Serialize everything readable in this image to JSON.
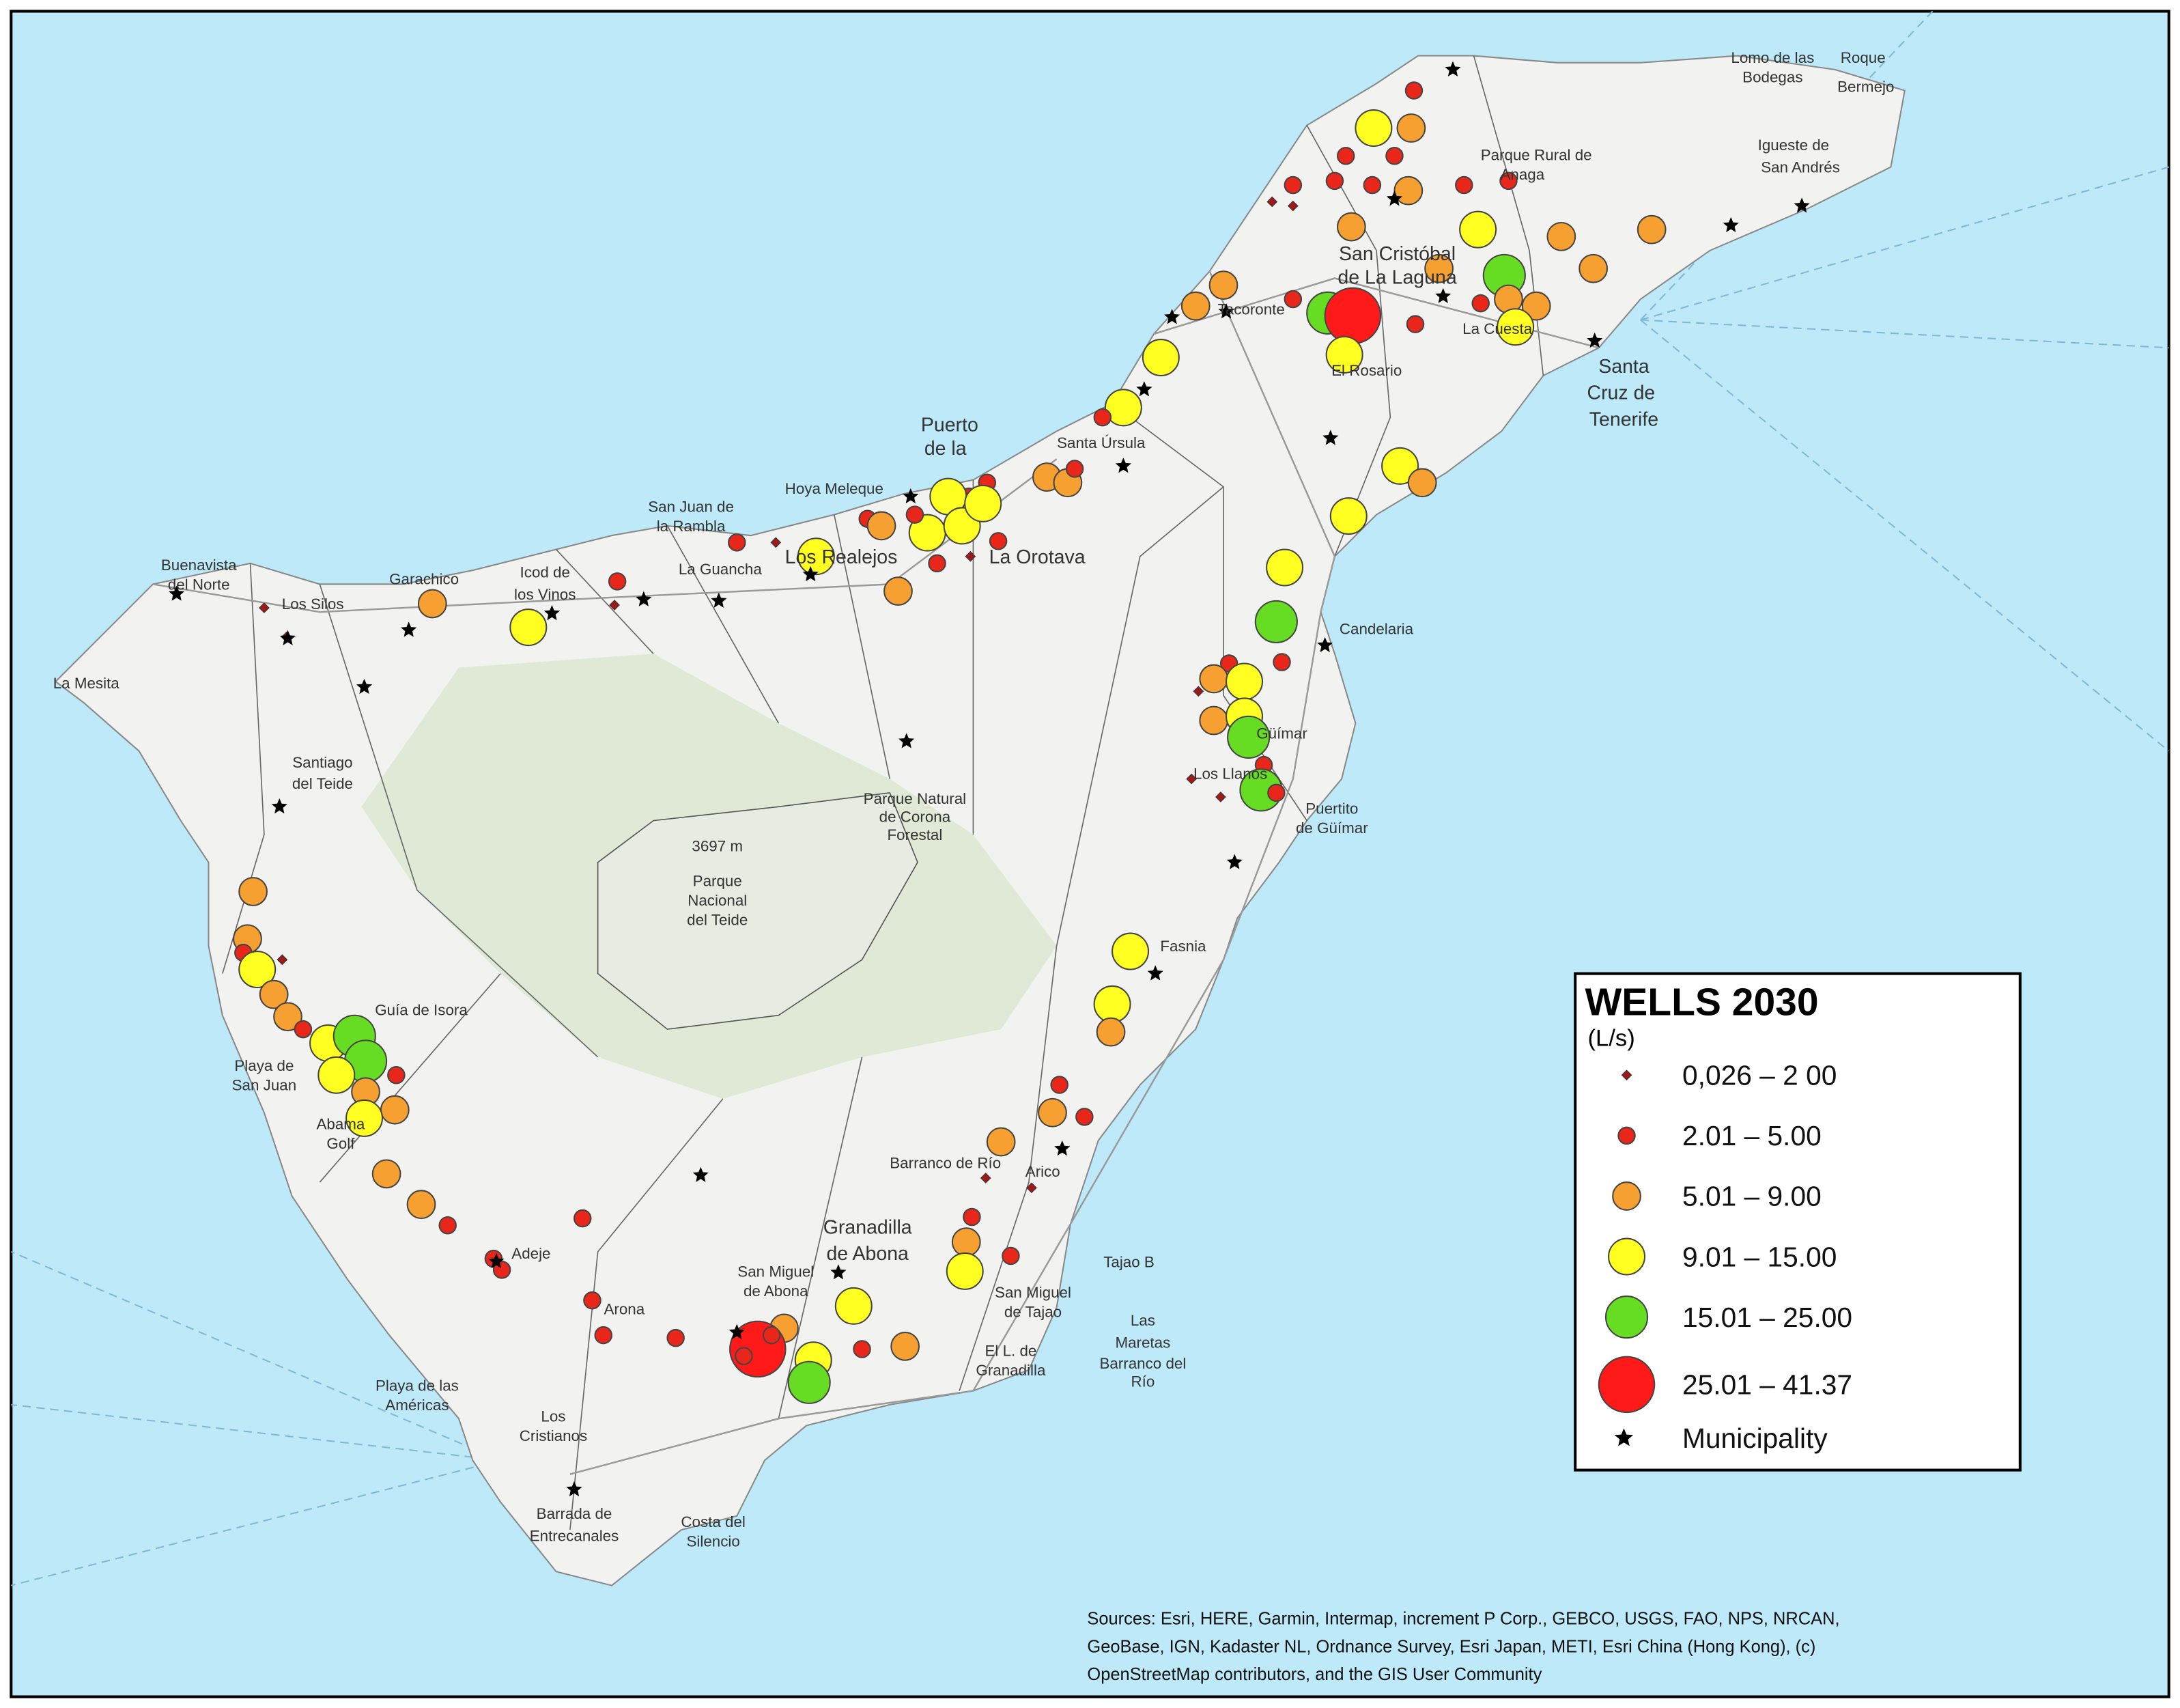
{
  "map": {
    "legend": {
      "title": "WELLS 2030",
      "unit": "(L/s)",
      "items": [
        "0,026 – 2 00",
        "2.01 – 5.00",
        "5.01 – 9.00",
        "9.01 – 15.00",
        "15.01 – 25.00",
        "25.01 – 41.37",
        "Municipality"
      ]
    },
    "places": [
      "Lomo de las",
      "Bodegas",
      "Roque",
      "Bermejo",
      "Igueste de",
      "San Andrés",
      "Parque Rural de",
      "Anaga",
      "San Cristóbal",
      "de La Laguna",
      "Tacoronte",
      "La Cuesta",
      "El Rosario",
      "Santa",
      "Cruz de",
      "Tenerife",
      "Santa Úrsula",
      "Puerto",
      "de la",
      "Hoya Meleque",
      "Los Realejos",
      "La Orotava",
      "San Juan de",
      "la Rambla",
      "La Guancha",
      "Icod de",
      "los Vinos",
      "Garachico",
      "Buenavista",
      "del Norte",
      "Los Silos",
      "La Mesita",
      "Santiago",
      "del Teide",
      "Candelaria",
      "Güímar",
      "Los Llanos",
      "Puertito",
      "de Güímar",
      "3697 m",
      "Parque",
      "Nacional",
      "del Teide",
      "Parque Natural",
      "de Corona",
      "Forestal",
      "Fasnia",
      "Guía de Isora",
      "Playa de",
      "San Juan",
      "Abama",
      "Golf",
      "Arico",
      "Barranco de Río",
      "Granadilla",
      "de Abona",
      "Tajao B",
      "San Miguel",
      "de Abona",
      "San Miguel",
      "de Tajao",
      "Adeje",
      "Arona",
      "Playa de las",
      "Américas",
      "Los",
      "Cristianos",
      "Las",
      "Maretas",
      "Barranco del",
      "Río",
      "El L. de",
      "Granadilla",
      "Barrada de",
      "Entrecanales",
      "Costa del",
      "Silencio"
    ],
    "sources": [
      "Sources: Esri, HERE, Garmin, Intermap, increment P Corp., GEBCO, USGS, FAO, NPS, NRCAN,",
      "GeoBase, IGN, Kadaster NL, Ordnance Survey, Esri Japan, METI, Esri China (Hong Kong), (c)",
      "OpenStreetMap contributors, and the GIS User Community"
    ]
  }
}
